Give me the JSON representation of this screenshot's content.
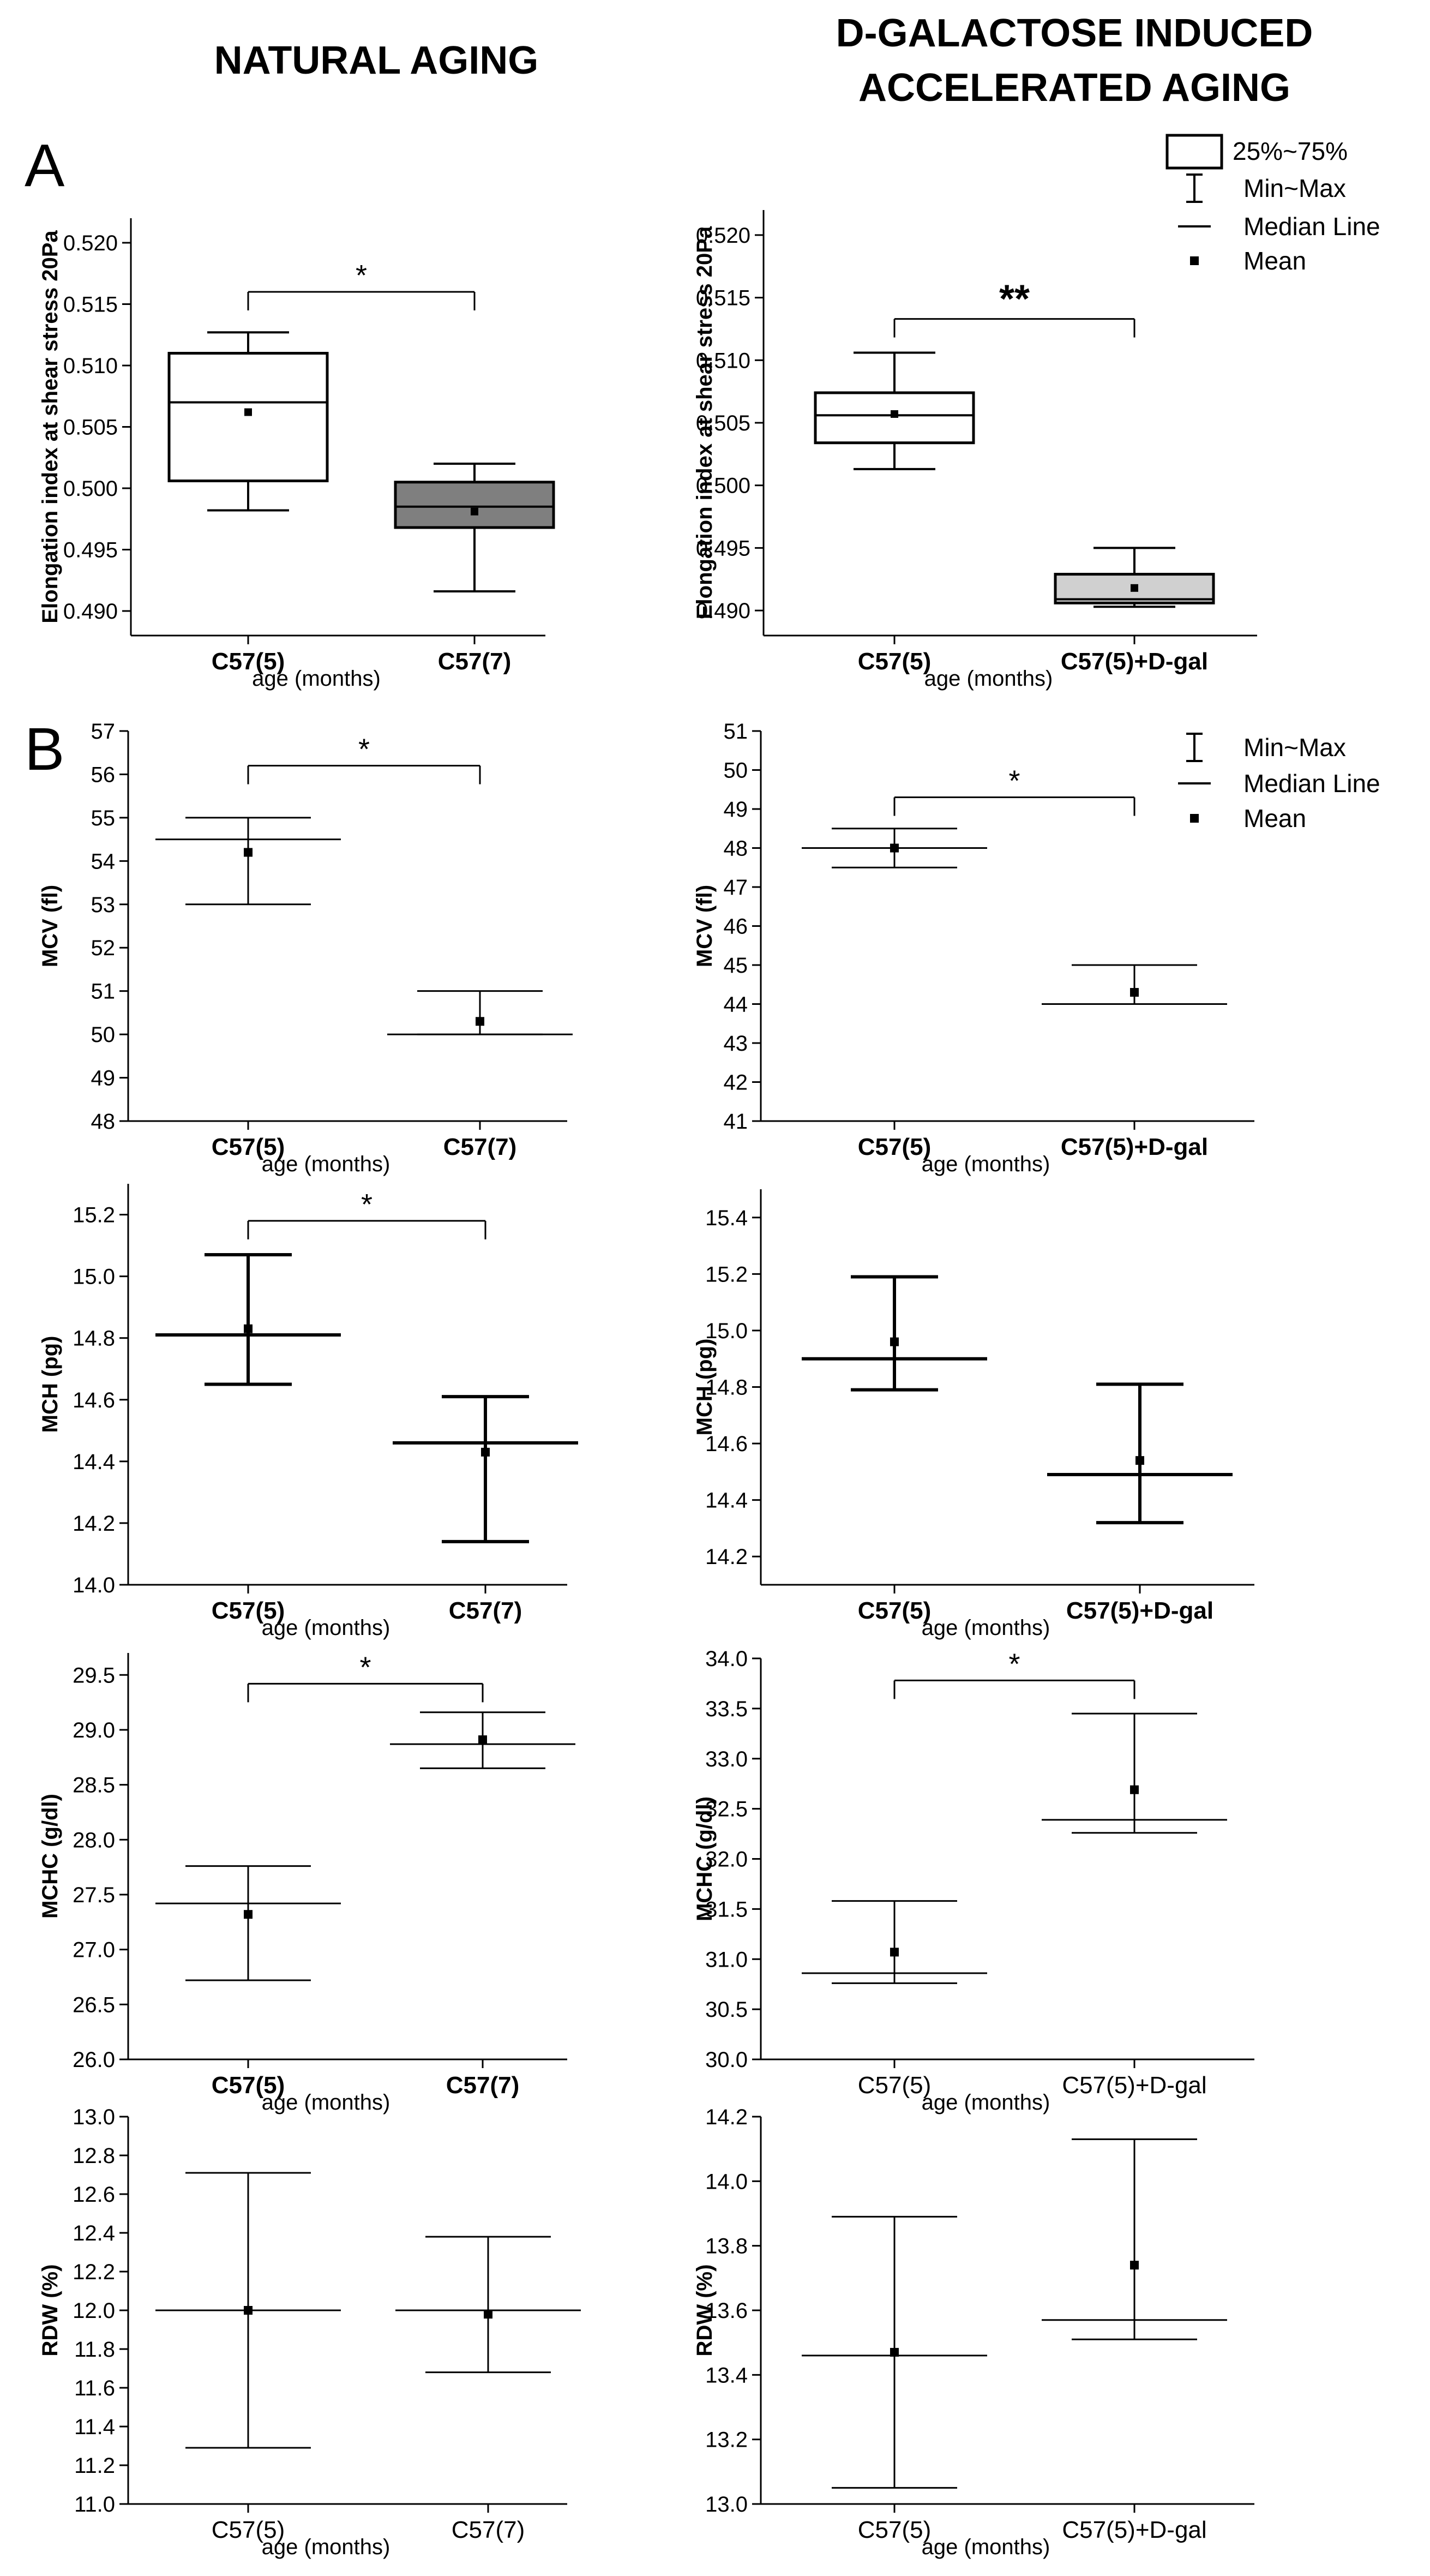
{
  "figure": {
    "col_titles": [
      "NATURAL AGING",
      "D-GALACTOSE INDUCED",
      "ACCELERATED AGING"
    ],
    "panels": [
      "A",
      "B"
    ]
  },
  "chart_data": [
    {
      "type": "box",
      "ylabel": "Elongation index at shear stress 20Pa",
      "xlabel": "age (months)",
      "categories": [
        "C57(5)",
        "C57(7)"
      ],
      "ylim": [
        0.488,
        0.522
      ],
      "yticks": [
        0.49,
        0.495,
        0.5,
        0.505,
        0.51,
        0.515,
        0.52
      ],
      "yfmt": 3,
      "boxes": [
        {
          "min": 0.4982,
          "q1": 0.5006,
          "median": 0.507,
          "q3": 0.511,
          "max": 0.5127,
          "mean": 0.5062,
          "fill": "#ffffff"
        },
        {
          "min": 0.4916,
          "q1": 0.4968,
          "median": 0.4985,
          "q3": 0.5005,
          "max": 0.502,
          "mean": 0.4981,
          "fill": "#7f7f7f"
        }
      ],
      "significance": {
        "label": "*",
        "at": 0.516
      }
    },
    {
      "type": "box",
      "ylabel": "Elongation index at shear stress 20Pa",
      "xlabel": "age (months)",
      "categories": [
        "C57(5)",
        "C57(5)+D-gal"
      ],
      "ylim": [
        0.488,
        0.522
      ],
      "yticks": [
        0.49,
        0.495,
        0.5,
        0.505,
        0.51,
        0.515,
        0.52
      ],
      "yfmt": 3,
      "boxes": [
        {
          "min": 0.5013,
          "q1": 0.5034,
          "median": 0.5056,
          "q3": 0.5074,
          "max": 0.5106,
          "mean": 0.5057,
          "fill": "#ffffff"
        },
        {
          "min": 0.4903,
          "q1": 0.4906,
          "median": 0.4909,
          "q3": 0.4929,
          "max": 0.495,
          "mean": 0.4918,
          "fill": "#d0d0d0"
        }
      ],
      "significance": {
        "label": "**",
        "at": 0.5133
      },
      "legend": {
        "position": "top-right",
        "entries": [
          "25%~75%",
          "Min~Max",
          "Median Line",
          "Mean"
        ]
      }
    },
    {
      "type": "errorbar",
      "ylabel": "MCV (fl)",
      "xlabel": "age (months)",
      "categories": [
        "C57(5)",
        "C57(7)"
      ],
      "ylim": [
        48,
        57
      ],
      "yticks": [
        48,
        49,
        50,
        51,
        52,
        53,
        54,
        55,
        56,
        57
      ],
      "yfmt": 0,
      "groups": [
        {
          "min": 53.0,
          "median": 54.5,
          "max": 55.0,
          "mean": 54.2
        },
        {
          "min": 50.0,
          "median": 50.0,
          "max": 51.0,
          "mean": 50.3
        }
      ],
      "significance": {
        "label": "*",
        "at": 56.2
      }
    },
    {
      "type": "errorbar",
      "ylabel": "MCV (fl)",
      "xlabel": "age (months)",
      "categories": [
        "C57(5)",
        "C57(5)+D-gal"
      ],
      "ylim": [
        41,
        51
      ],
      "yticks": [
        41,
        42,
        43,
        44,
        45,
        46,
        47,
        48,
        49,
        50,
        51
      ],
      "yfmt": 0,
      "groups": [
        {
          "min": 47.5,
          "median": 48.0,
          "max": 48.5,
          "mean": 48.0
        },
        {
          "min": 44.0,
          "median": 44.0,
          "max": 45.0,
          "mean": 44.3
        }
      ],
      "significance": {
        "label": "*",
        "at": 49.3
      },
      "legend": {
        "position": "top-right",
        "entries": [
          "Min~Max",
          "Median Line",
          "Mean"
        ]
      }
    },
    {
      "type": "errorbar",
      "ylabel": "MCH (pg)",
      "xlabel": "age (months)",
      "categories": [
        "C57(5)",
        "C57(7)"
      ],
      "ylim": [
        14.0,
        15.3
      ],
      "yticks": [
        14.0,
        14.2,
        14.4,
        14.6,
        14.8,
        15.0,
        15.2
      ],
      "yfmt": 1,
      "groups": [
        {
          "min": 14.65,
          "median": 14.81,
          "max": 15.07,
          "mean": 14.83
        },
        {
          "min": 14.14,
          "median": 14.46,
          "max": 14.61,
          "mean": 14.43
        }
      ],
      "significance": {
        "label": "*",
        "at": 15.18
      }
    },
    {
      "type": "errorbar",
      "ylabel": "MCH (pg)",
      "xlabel": "age (months)",
      "categories": [
        "C57(5)",
        "C57(5)+D-gal"
      ],
      "ylim": [
        14.1,
        15.5
      ],
      "yticks": [
        14.2,
        14.4,
        14.6,
        14.8,
        15.0,
        15.2,
        15.4
      ],
      "yfmt": 1,
      "groups": [
        {
          "min": 14.79,
          "median": 14.9,
          "max": 15.19,
          "mean": 14.96
        },
        {
          "min": 14.32,
          "median": 14.49,
          "max": 14.81,
          "mean": 14.54
        }
      ]
    },
    {
      "type": "errorbar",
      "ylabel": "MCHC (g/dl)",
      "xlabel": "age (months)",
      "categories": [
        "C57(5)",
        "C57(7)"
      ],
      "ylim": [
        26.0,
        29.7
      ],
      "yticks": [
        26.0,
        26.5,
        27.0,
        27.5,
        28.0,
        28.5,
        29.0,
        29.5
      ],
      "yfmt": 1,
      "groups": [
        {
          "min": 26.72,
          "median": 27.42,
          "max": 27.76,
          "mean": 27.32
        },
        {
          "min": 28.65,
          "median": 28.87,
          "max": 29.16,
          "mean": 28.91
        }
      ],
      "significance": {
        "label": "*",
        "at": 29.42
      }
    },
    {
      "type": "errorbar",
      "ylabel": "MCHC (g/dl)",
      "xlabel": "age (months)",
      "categories": [
        "C57(5)",
        "C57(5)+D-gal"
      ],
      "ylim": [
        30.0,
        34.0
      ],
      "yticks": [
        30.0,
        30.5,
        31.0,
        31.5,
        32.0,
        32.5,
        33.0,
        33.5,
        34.0
      ],
      "yfmt": 1,
      "groups": [
        {
          "min": 30.76,
          "median": 30.86,
          "max": 31.58,
          "mean": 31.07
        },
        {
          "min": 32.26,
          "median": 32.39,
          "max": 33.45,
          "mean": 32.69
        }
      ],
      "significance": {
        "label": "*",
        "at": 33.78
      }
    },
    {
      "type": "errorbar",
      "ylabel": "RDW (%)",
      "xlabel": "age (months)",
      "categories": [
        "C57(5)",
        "C57(7)"
      ],
      "ylim": [
        11.0,
        13.0
      ],
      "yticks": [
        11.0,
        11.2,
        11.4,
        11.6,
        11.8,
        12.0,
        12.2,
        12.4,
        12.6,
        12.8,
        13.0
      ],
      "yfmt": 1,
      "groups": [
        {
          "min": 11.29,
          "median": 12.0,
          "max": 12.71,
          "mean": 12.0
        },
        {
          "min": 11.68,
          "median": 12.0,
          "max": 12.38,
          "mean": 11.98
        }
      ]
    },
    {
      "type": "errorbar",
      "ylabel": "RDW (%)",
      "xlabel": "age (months)",
      "categories": [
        "C57(5)",
        "C57(5)+D-gal"
      ],
      "ylim": [
        13.0,
        14.2
      ],
      "yticks": [
        13.0,
        13.2,
        13.4,
        13.6,
        13.8,
        14.0,
        14.2
      ],
      "yfmt": 1,
      "groups": [
        {
          "min": 13.05,
          "median": 13.46,
          "max": 13.89,
          "mean": 13.47
        },
        {
          "min": 13.51,
          "median": 13.57,
          "max": 14.13,
          "mean": 13.74
        }
      ]
    }
  ]
}
